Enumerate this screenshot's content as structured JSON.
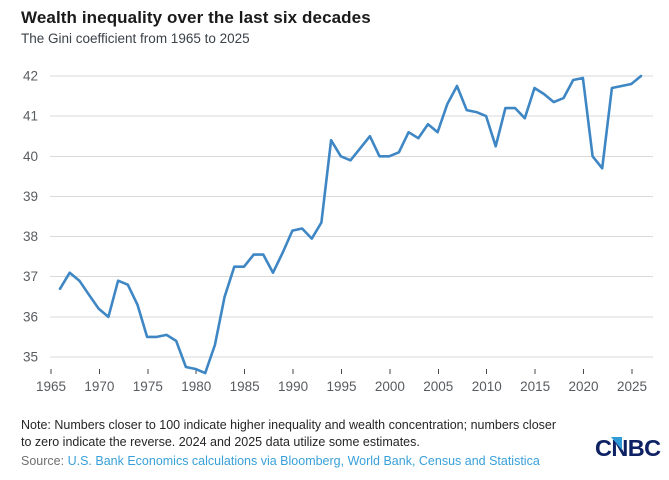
{
  "header": {
    "title": "Wealth inequality over the last six decades",
    "subtitle": "The Gini coefficient from 1965 to 2025"
  },
  "chart_data": {
    "type": "line",
    "title": "Wealth inequality over the last six decades",
    "subtitle": "The Gini coefficient from 1965 to 2025",
    "xlabel": "",
    "ylabel": "",
    "legend": "none",
    "grid": "horizontal",
    "xlim": [
      1965,
      2025
    ],
    "ylim": [
      34.4,
      42.35
    ],
    "x_ticks": [
      1965,
      1970,
      1975,
      1980,
      1985,
      1990,
      1995,
      2000,
      2005,
      2010,
      2015,
      2020,
      2025
    ],
    "y_ticks": [
      35,
      36,
      37,
      38,
      39,
      40,
      41,
      42
    ],
    "x": [
      1965,
      1966,
      1967,
      1968,
      1969,
      1970,
      1971,
      1972,
      1973,
      1974,
      1975,
      1976,
      1977,
      1978,
      1979,
      1980,
      1981,
      1982,
      1983,
      1984,
      1985,
      1986,
      1987,
      1988,
      1989,
      1990,
      1991,
      1992,
      1993,
      1994,
      1995,
      1996,
      1997,
      1998,
      1999,
      2000,
      2001,
      2002,
      2003,
      2004,
      2005,
      2006,
      2007,
      2008,
      2009,
      2010,
      2011,
      2012,
      2013,
      2014,
      2015,
      2016,
      2017,
      2018,
      2019,
      2020,
      2021,
      2022,
      2023,
      2024,
      2025
    ],
    "series": [
      {
        "name": "Gini coefficient",
        "color": "#3e87c4",
        "values": [
          36.7,
          37.1,
          36.9,
          36.55,
          36.2,
          36.0,
          36.9,
          36.8,
          36.3,
          35.5,
          35.5,
          35.55,
          35.4,
          34.75,
          34.7,
          34.6,
          35.3,
          36.5,
          37.25,
          37.25,
          37.55,
          37.55,
          37.1,
          37.6,
          38.15,
          38.2,
          37.95,
          38.35,
          40.4,
          40.0,
          39.9,
          40.2,
          40.5,
          40.0,
          40.0,
          40.1,
          40.6,
          40.45,
          40.8,
          40.6,
          41.3,
          41.75,
          41.15,
          41.1,
          41.0,
          40.25,
          41.2,
          41.2,
          40.95,
          41.7,
          41.55,
          41.35,
          41.45,
          41.9,
          41.95,
          40.0,
          39.7,
          41.7,
          41.75,
          41.8,
          42.0
        ]
      }
    ]
  },
  "footer": {
    "note_line1": "Note: Numbers closer to 100 indicate higher inequality and wealth concentration; numbers closer",
    "note_line2": "to zero indicate the reverse. 2024 and 2025 data utilize some estimates.",
    "source_label": "Source:",
    "source_text": "U.S. Bank Economics calculations via Bloomberg, World Bank, Census and Statistica"
  },
  "logo": {
    "part1": "C",
    "part2": "N",
    "part3": "BC"
  },
  "colors": {
    "line": "#3e87c4",
    "gridline": "#d9d9d9",
    "axis_label": "#585c60",
    "tick_mark": "#4a4a4a",
    "title": "#1a1a1a",
    "subtitle": "#3b4248",
    "note": "#262626",
    "source_label": "#707070",
    "source_link": "#38a0d9",
    "logo_navy": "#0d2163",
    "logo_blue": "#2e9bd6"
  }
}
